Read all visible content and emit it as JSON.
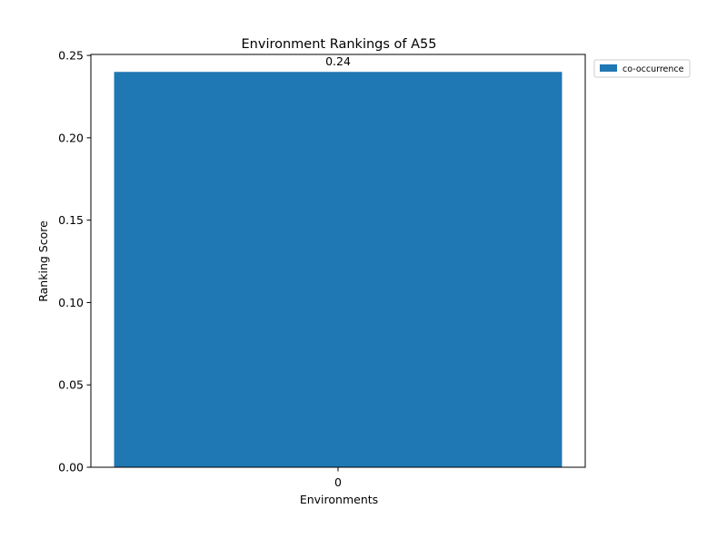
{
  "chart_data": {
    "type": "bar",
    "title": "Environment Rankings of A55",
    "xlabel": "Environments",
    "ylabel": "Ranking Score",
    "categories": [
      "0"
    ],
    "series": [
      {
        "name": "co-occurrence",
        "values": [
          0.24
        ],
        "color": "#1f77b4",
        "data_labels": [
          "0.24"
        ]
      }
    ],
    "ylim": [
      0,
      0.25
    ],
    "yticks": [
      0.0,
      0.05,
      0.1,
      0.15,
      0.2,
      0.25
    ],
    "ytick_labels": [
      "0.00",
      "0.05",
      "0.10",
      "0.15",
      "0.20",
      "0.25"
    ],
    "grid": false,
    "legend_position": "outside-top-right"
  }
}
